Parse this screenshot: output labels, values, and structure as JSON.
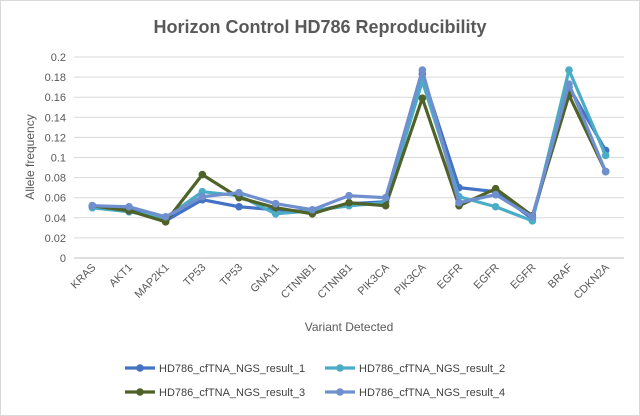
{
  "chart_data": {
    "type": "line",
    "title": "Horizon Control HD786 Reproducibility",
    "xlabel": "Variant Detected",
    "ylabel": "Allele frequency",
    "ylim": [
      0,
      0.2
    ],
    "yticks": [
      "0",
      "0.02",
      "0.04",
      "0.06",
      "0.08",
      "0.1",
      "0.12",
      "0.14",
      "0.16",
      "0.18",
      "0.2"
    ],
    "ytick_values": [
      0,
      0.02,
      0.04,
      0.06,
      0.08,
      0.1,
      0.12,
      0.14,
      0.16,
      0.18,
      0.2
    ],
    "grid": true,
    "legend_position": "bottom",
    "categories": [
      "KRAS",
      "AKT1",
      "MAP2K1",
      "TP53",
      "TP53",
      "GNA11",
      "CTNNB1",
      "CTNNB1",
      "PIK3CA",
      "PIK3CA",
      "EGFR",
      "EGFR",
      "EGFR",
      "BRAF",
      "CDKN2A"
    ],
    "series": [
      {
        "name": "HD786_cfTNA_NGS_result_1",
        "color": "#4472c4",
        "values": [
          0.052,
          0.05,
          0.037,
          0.058,
          0.051,
          0.048,
          0.046,
          0.054,
          0.056,
          0.183,
          0.07,
          0.066,
          0.039,
          0.17,
          0.107
        ]
      },
      {
        "name": "HD786_cfTNA_NGS_result_2",
        "color": "#4bacc6",
        "values": [
          0.05,
          0.046,
          0.04,
          0.066,
          0.062,
          0.044,
          0.047,
          0.052,
          0.055,
          0.176,
          0.061,
          0.051,
          0.037,
          0.187,
          0.102
        ]
      },
      {
        "name": "HD786_cfTNA_NGS_result_3",
        "color": "#4f6228",
        "values": [
          0.052,
          0.047,
          0.036,
          0.083,
          0.06,
          0.05,
          0.044,
          0.055,
          0.052,
          0.159,
          0.052,
          0.069,
          0.042,
          0.162,
          0.086
        ]
      },
      {
        "name": "HD786_cfTNA_NGS_result_4",
        "color": "#6f8fcf",
        "values": [
          0.052,
          0.051,
          0.041,
          0.061,
          0.065,
          0.054,
          0.048,
          0.062,
          0.06,
          0.187,
          0.055,
          0.063,
          0.041,
          0.173,
          0.086
        ]
      }
    ]
  }
}
